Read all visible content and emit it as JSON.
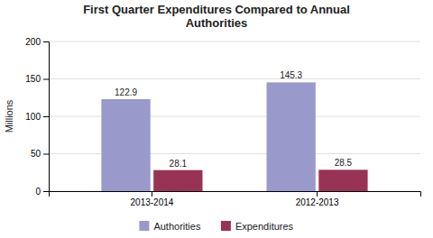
{
  "chart_data": {
    "type": "bar",
    "title": "First Quarter Expenditures Compared to Annual\nAuthorities",
    "ylabel": "Millions",
    "categories": [
      "2013-2014",
      "2012-2013"
    ],
    "series": [
      {
        "name": "Authorities",
        "color": "#9999cc",
        "values": [
          122.9,
          145.3
        ]
      },
      {
        "name": "Expenditures",
        "color": "#993355",
        "values": [
          28.1,
          28.5
        ]
      }
    ],
    "ylim": [
      0,
      200
    ],
    "yticks": [
      0,
      50,
      100,
      150,
      200
    ],
    "grid": true,
    "legend": "bottom",
    "data_labels": true
  }
}
